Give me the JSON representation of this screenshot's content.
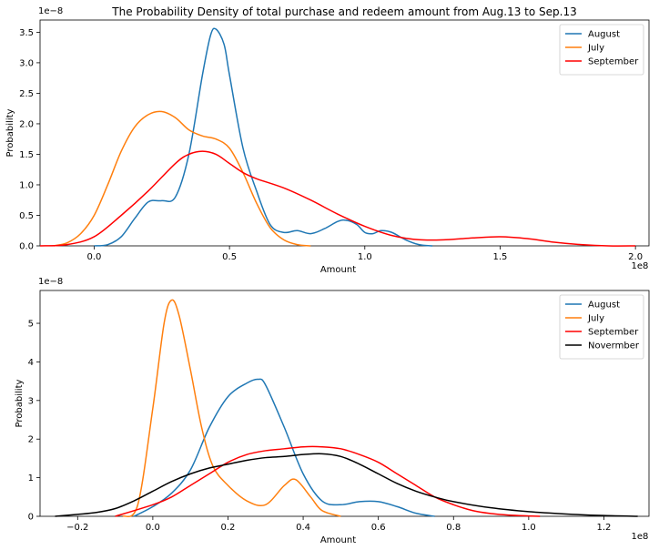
{
  "chart_data": [
    {
      "type": "line",
      "title": "The Probability Density of total purchase and redeem amount from Aug.13 to Sep.13",
      "xlabel": "Amount",
      "ylabel": "Probability",
      "x_offset_label": "1e8",
      "y_offset_label": "1e−8",
      "xlim": [
        -0.2,
        2.05
      ],
      "ylim": [
        0,
        3.7
      ],
      "xticks": [
        0.0,
        0.5,
        1.0,
        1.5,
        2.0
      ],
      "xtick_labels": [
        "0.0",
        "0.5",
        "1.0",
        "1.5",
        "2.0"
      ],
      "yticks": [
        0.0,
        0.5,
        1.0,
        1.5,
        2.0,
        2.5,
        3.0,
        3.5
      ],
      "ytick_labels": [
        "0.0",
        "0.5",
        "1.0",
        "1.5",
        "2.0",
        "2.5",
        "3.0",
        "3.5"
      ],
      "legend_position": "top-right",
      "series": [
        {
          "name": "August",
          "color": "#1f77b4",
          "x": [
            0.0,
            0.05,
            0.1,
            0.15,
            0.2,
            0.25,
            0.3,
            0.35,
            0.4,
            0.43,
            0.45,
            0.48,
            0.5,
            0.55,
            0.6,
            0.65,
            0.7,
            0.75,
            0.8,
            0.85,
            0.9,
            0.93,
            0.97,
            1.0,
            1.03,
            1.06,
            1.1,
            1.15,
            1.2,
            1.25
          ],
          "y": [
            0.0,
            0.02,
            0.15,
            0.45,
            0.72,
            0.74,
            0.8,
            1.5,
            2.8,
            3.45,
            3.55,
            3.3,
            2.8,
            1.6,
            0.9,
            0.35,
            0.22,
            0.25,
            0.2,
            0.28,
            0.4,
            0.42,
            0.35,
            0.22,
            0.2,
            0.25,
            0.22,
            0.1,
            0.02,
            0.0
          ]
        },
        {
          "name": "July",
          "color": "#ff7f0e",
          "x": [
            -0.15,
            -0.1,
            -0.05,
            0.0,
            0.05,
            0.1,
            0.15,
            0.2,
            0.25,
            0.3,
            0.35,
            0.4,
            0.45,
            0.5,
            0.55,
            0.6,
            0.65,
            0.7,
            0.75,
            0.8
          ],
          "y": [
            0.0,
            0.05,
            0.2,
            0.5,
            1.0,
            1.55,
            1.95,
            2.15,
            2.2,
            2.1,
            1.9,
            1.8,
            1.75,
            1.6,
            1.2,
            0.7,
            0.3,
            0.1,
            0.02,
            0.0
          ]
        },
        {
          "name": "September",
          "color": "#ff0000",
          "x": [
            -0.2,
            -0.1,
            0.0,
            0.1,
            0.2,
            0.3,
            0.35,
            0.4,
            0.45,
            0.5,
            0.55,
            0.6,
            0.7,
            0.8,
            0.9,
            1.0,
            1.1,
            1.2,
            1.3,
            1.4,
            1.5,
            1.6,
            1.7,
            1.8,
            1.9,
            2.0
          ],
          "y": [
            0.0,
            0.02,
            0.15,
            0.5,
            0.9,
            1.35,
            1.5,
            1.55,
            1.5,
            1.35,
            1.2,
            1.1,
            0.95,
            0.75,
            0.52,
            0.32,
            0.17,
            0.1,
            0.1,
            0.13,
            0.15,
            0.12,
            0.06,
            0.02,
            0.0,
            0.0
          ]
        }
      ]
    },
    {
      "type": "line",
      "title": "",
      "xlabel": "Amount",
      "ylabel": "Probability",
      "x_offset_label": "1e8",
      "y_offset_label": "1e−8",
      "xlim": [
        -0.3,
        1.32
      ],
      "ylim": [
        0,
        5.85
      ],
      "xticks": [
        -0.2,
        0.0,
        0.2,
        0.4,
        0.6,
        0.8,
        1.0,
        1.2
      ],
      "xtick_labels": [
        "−0.2",
        "0.0",
        "0.2",
        "0.4",
        "0.6",
        "0.8",
        "1.0",
        "1.2"
      ],
      "yticks": [
        0,
        1,
        2,
        3,
        4,
        5
      ],
      "ytick_labels": [
        "0",
        "1",
        "2",
        "3",
        "4",
        "5"
      ],
      "legend_position": "top-right",
      "series": [
        {
          "name": "August",
          "color": "#1f77b4",
          "x": [
            -0.05,
            0.0,
            0.05,
            0.1,
            0.15,
            0.2,
            0.25,
            0.28,
            0.3,
            0.35,
            0.4,
            0.45,
            0.5,
            0.55,
            0.6,
            0.65,
            0.7,
            0.75
          ],
          "y": [
            0.0,
            0.25,
            0.6,
            1.2,
            2.3,
            3.1,
            3.45,
            3.55,
            3.4,
            2.3,
            1.1,
            0.4,
            0.3,
            0.38,
            0.38,
            0.25,
            0.08,
            0.0
          ]
        },
        {
          "name": "July",
          "color": "#ff7f0e",
          "x": [
            -0.08,
            -0.04,
            0.0,
            0.03,
            0.05,
            0.07,
            0.1,
            0.13,
            0.16,
            0.2,
            0.25,
            0.3,
            0.35,
            0.38,
            0.42,
            0.45,
            0.5
          ],
          "y": [
            0.0,
            0.3,
            2.8,
            5.0,
            5.6,
            5.2,
            3.8,
            2.3,
            1.3,
            0.8,
            0.4,
            0.3,
            0.8,
            0.95,
            0.5,
            0.15,
            0.0
          ]
        },
        {
          "name": "September",
          "color": "#ff0000",
          "x": [
            -0.1,
            0.0,
            0.05,
            0.1,
            0.15,
            0.2,
            0.25,
            0.3,
            0.35,
            0.4,
            0.45,
            0.5,
            0.55,
            0.6,
            0.65,
            0.7,
            0.75,
            0.8,
            0.85,
            0.9,
            0.95,
            1.0,
            1.03
          ],
          "y": [
            0.0,
            0.3,
            0.5,
            0.8,
            1.1,
            1.4,
            1.6,
            1.7,
            1.75,
            1.8,
            1.8,
            1.75,
            1.6,
            1.4,
            1.1,
            0.8,
            0.5,
            0.3,
            0.15,
            0.07,
            0.03,
            0.01,
            0.0
          ]
        },
        {
          "name": "Novermber",
          "color": "#000000",
          "x": [
            -0.26,
            -0.2,
            -0.15,
            -0.1,
            -0.05,
            0.0,
            0.05,
            0.1,
            0.15,
            0.2,
            0.25,
            0.3,
            0.35,
            0.4,
            0.45,
            0.5,
            0.55,
            0.6,
            0.65,
            0.7,
            0.75,
            0.8,
            0.9,
            1.0,
            1.1,
            1.2,
            1.29
          ],
          "y": [
            0.0,
            0.05,
            0.1,
            0.2,
            0.4,
            0.65,
            0.9,
            1.1,
            1.25,
            1.35,
            1.45,
            1.52,
            1.55,
            1.6,
            1.62,
            1.55,
            1.35,
            1.1,
            0.85,
            0.65,
            0.5,
            0.38,
            0.22,
            0.12,
            0.06,
            0.02,
            0.0
          ]
        }
      ]
    }
  ]
}
